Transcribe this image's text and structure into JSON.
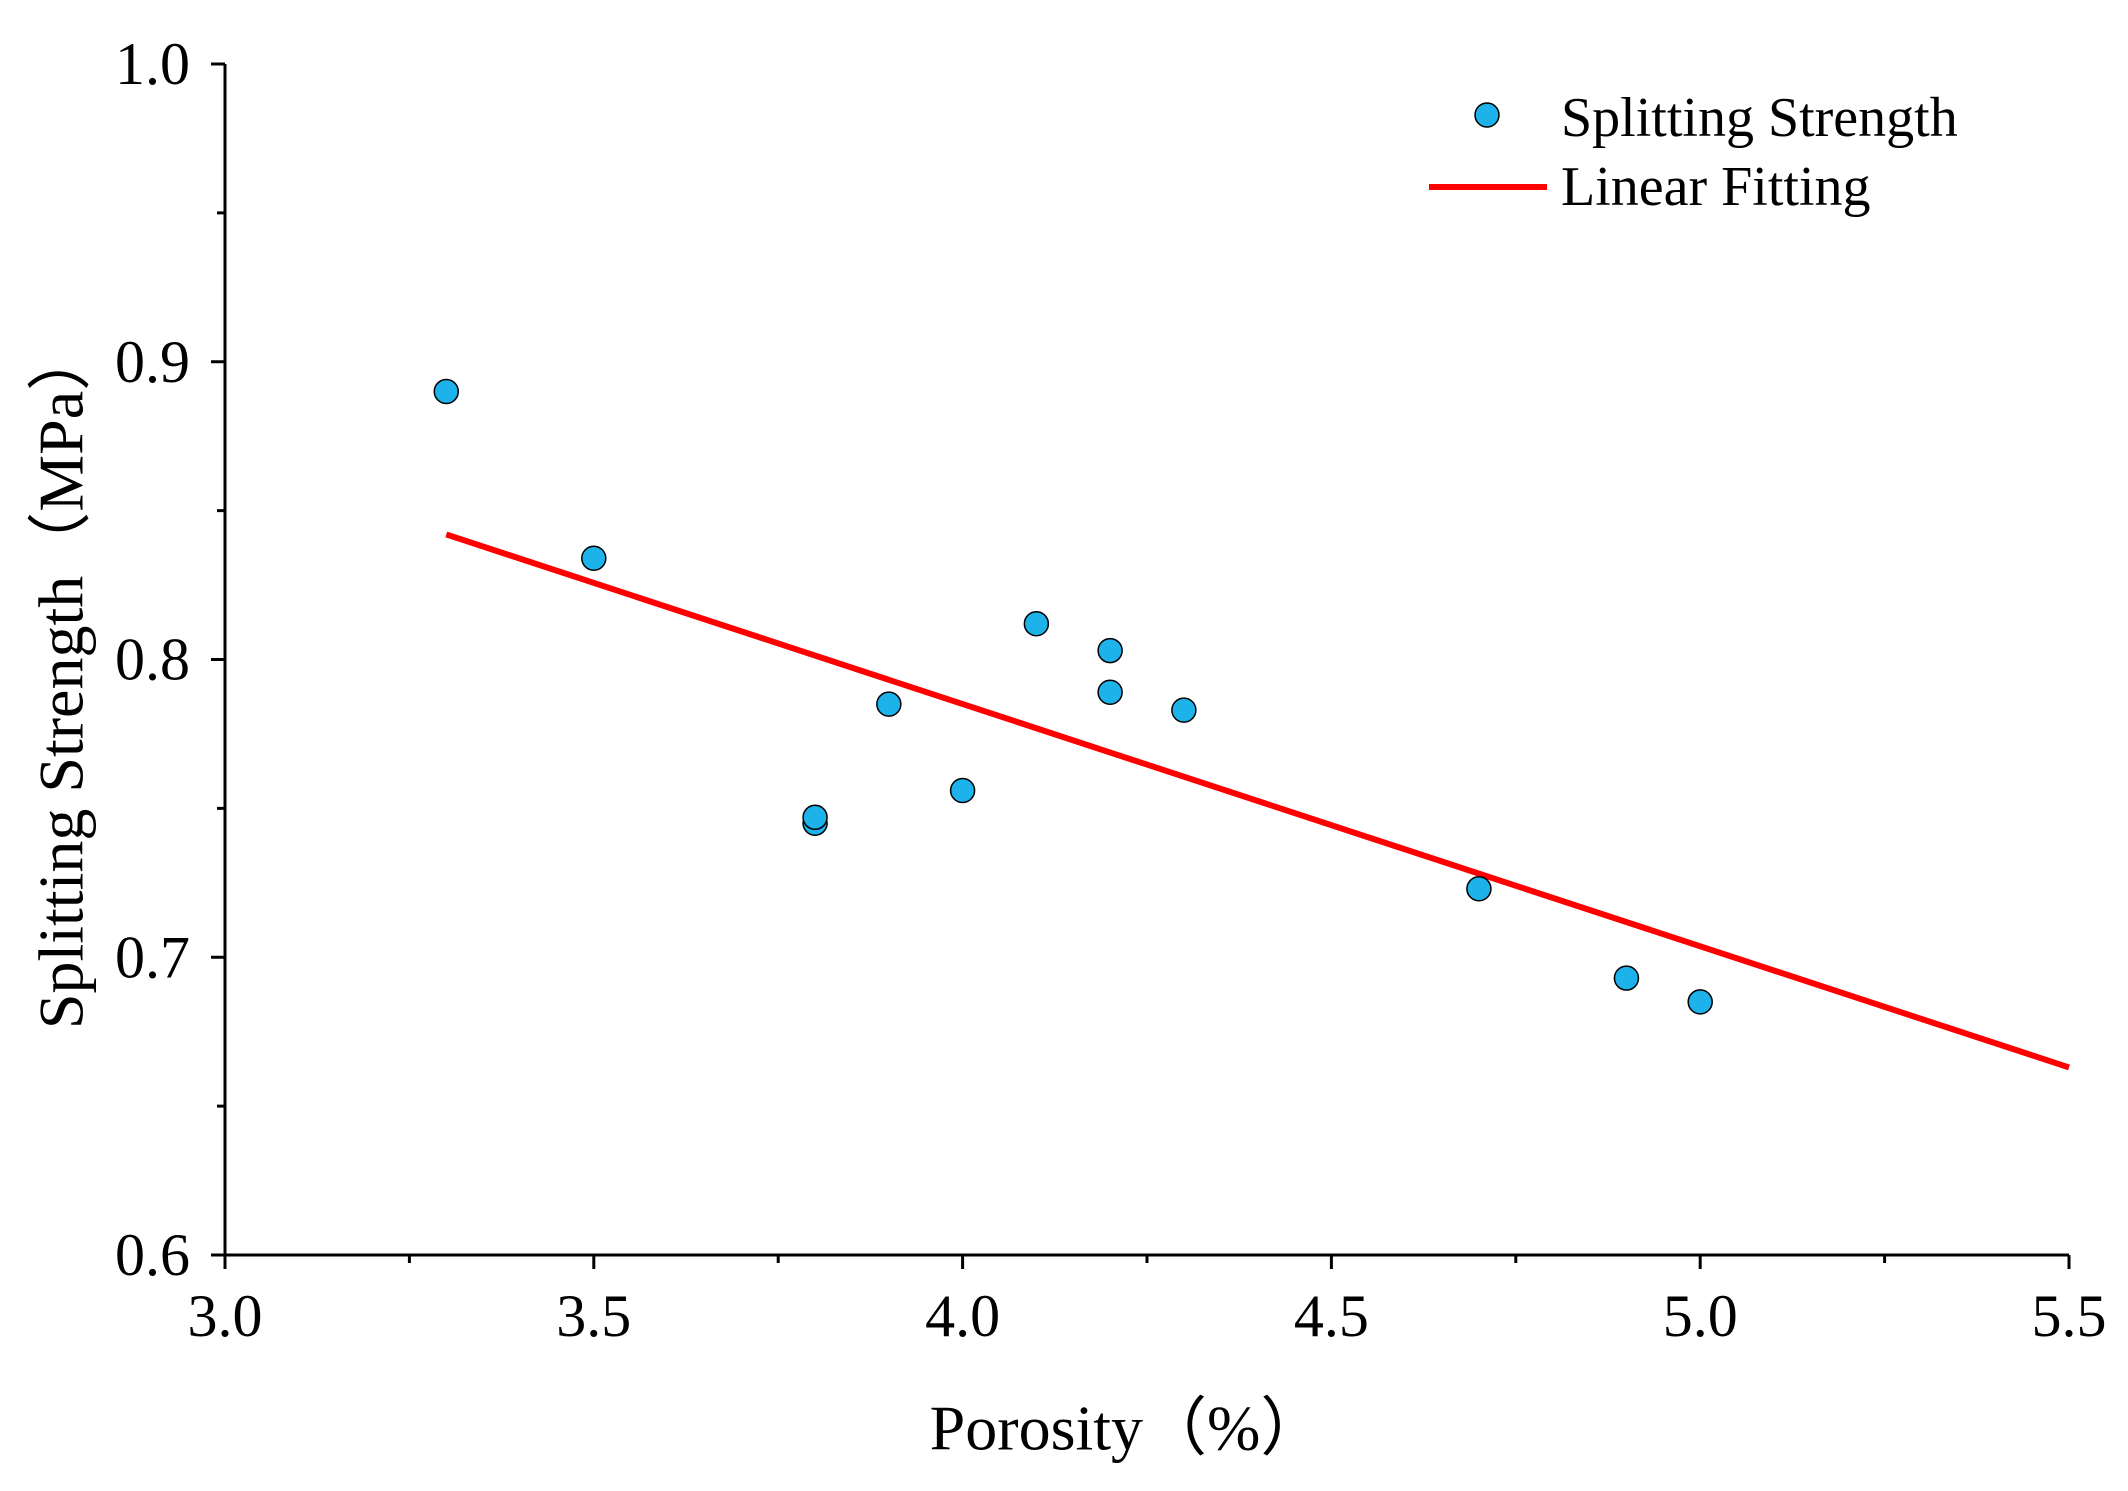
{
  "chart_data": {
    "type": "scatter",
    "title": "",
    "xlabel": "Porosity（%）",
    "ylabel": "Splitting Strength（MPa）",
    "xlim": [
      3.0,
      5.5
    ],
    "ylim": [
      0.6,
      1.0
    ],
    "grid": false,
    "legend_position": "top-right",
    "x_ticks": [
      {
        "value": 3.0,
        "label": "3.0"
      },
      {
        "value": 3.5,
        "label": "3.5"
      },
      {
        "value": 4.0,
        "label": "4.0"
      },
      {
        "value": 4.5,
        "label": "4.5"
      },
      {
        "value": 5.0,
        "label": "5.0"
      },
      {
        "value": 5.5,
        "label": "5.5"
      }
    ],
    "x_minor_ticks": [
      3.25,
      3.75,
      4.25,
      4.75,
      5.25
    ],
    "y_ticks": [
      {
        "value": 0.6,
        "label": "0.6"
      },
      {
        "value": 0.7,
        "label": "0.7"
      },
      {
        "value": 0.8,
        "label": "0.8"
      },
      {
        "value": 0.9,
        "label": "0.9"
      },
      {
        "value": 1.0,
        "label": "1.0"
      }
    ],
    "y_minor_ticks": [
      0.65,
      0.75,
      0.85,
      0.95
    ],
    "series": [
      {
        "name": "Splitting Strength",
        "kind": "scatter",
        "color": "#1DB2EA",
        "edge_color": "#000000",
        "points": [
          {
            "x": 3.3,
            "y": 0.89
          },
          {
            "x": 3.5,
            "y": 0.834
          },
          {
            "x": 3.8,
            "y": 0.745
          },
          {
            "x": 3.8,
            "y": 0.747
          },
          {
            "x": 3.9,
            "y": 0.785
          },
          {
            "x": 4.0,
            "y": 0.756
          },
          {
            "x": 4.1,
            "y": 0.812
          },
          {
            "x": 4.2,
            "y": 0.803
          },
          {
            "x": 4.2,
            "y": 0.789
          },
          {
            "x": 4.3,
            "y": 0.783
          },
          {
            "x": 4.7,
            "y": 0.723
          },
          {
            "x": 4.9,
            "y": 0.693
          },
          {
            "x": 5.0,
            "y": 0.685
          }
        ]
      },
      {
        "name": "Linear Fitting",
        "kind": "line",
        "color": "#FF0000",
        "points": [
          {
            "x": 3.3,
            "y": 0.842
          },
          {
            "x": 5.5,
            "y": 0.663
          }
        ]
      }
    ]
  }
}
